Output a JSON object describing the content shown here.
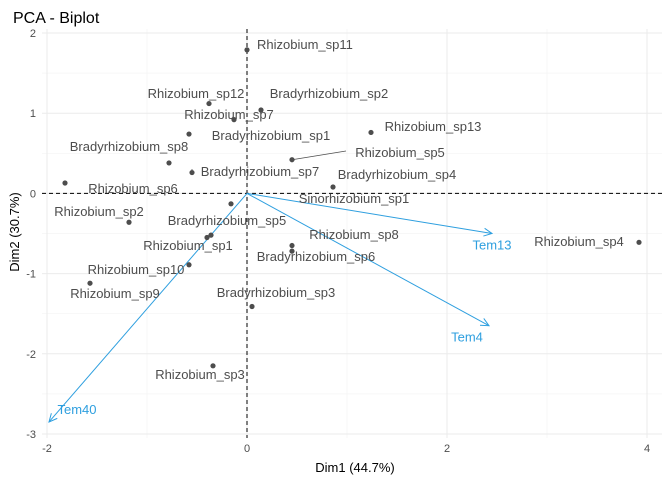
{
  "chart_data": {
    "type": "scatter",
    "title": "PCA - Biplot",
    "xlabel": "Dim1 (44.7%)",
    "ylabel": "Dim2 (30.7%)",
    "xlim": [
      -2.05,
      4.15
    ],
    "ylim": [
      -3.05,
      2.05
    ],
    "xticks": [
      -2,
      0,
      2,
      4
    ],
    "yticks": [
      -3,
      -2,
      -1,
      0,
      1,
      2
    ],
    "grid": true,
    "reference_lines": {
      "x": 0,
      "y": 0
    },
    "point_color": "#4d4d4d",
    "variable_color": "#2e9fdf",
    "individuals": [
      {
        "label": "Rhizobium_sp11",
        "x": 0.0,
        "y": 1.79
      },
      {
        "label": "Rhizobium_sp12",
        "x": -0.38,
        "y": 1.12
      },
      {
        "label": "Bradyrhizobium_sp2",
        "x": 0.14,
        "y": 1.04
      },
      {
        "label": "Rhizobium_sp7",
        "x": -0.13,
        "y": 0.92
      },
      {
        "label": "Bradyrhizobium_sp1",
        "x": -0.58,
        "y": 0.74
      },
      {
        "label": "Rhizobium_sp13",
        "x": 1.24,
        "y": 0.76
      },
      {
        "label": "Bradyrhizobium_sp8",
        "x": -0.78,
        "y": 0.38
      },
      {
        "label": "Rhizobium_sp5",
        "x": 0.45,
        "y": 0.42
      },
      {
        "label": "Bradyrhizobium_sp7",
        "x": -0.55,
        "y": 0.26
      },
      {
        "label": "Bradyrhizobium_sp4",
        "x": 0.86,
        "y": 0.08
      },
      {
        "label": "Rhizobium_sp6",
        "x": -1.82,
        "y": 0.13
      },
      {
        "label": "Sinorhizobium_sp1",
        "x": -0.16,
        "y": -0.13
      },
      {
        "label": "Rhizobium_sp2",
        "x": -1.18,
        "y": -0.36
      },
      {
        "label": "Bradyrhizobium_sp5",
        "x": -0.36,
        "y": -0.52
      },
      {
        "label": "Rhizobium_sp8",
        "x": 0.45,
        "y": -0.65
      },
      {
        "label": "Rhizobium_sp1",
        "x": -0.4,
        "y": -0.55
      },
      {
        "label": "Bradyrhizobium_sp6",
        "x": 0.45,
        "y": -0.72
      },
      {
        "label": "Rhizobium_sp4",
        "x": 3.92,
        "y": -0.61
      },
      {
        "label": "Rhizobium_sp10",
        "x": -0.58,
        "y": -0.89
      },
      {
        "label": "Rhizobium_sp9",
        "x": -1.57,
        "y": -1.12
      },
      {
        "label": "Bradyrhizobium_sp3",
        "x": 0.05,
        "y": -1.41
      },
      {
        "label": "Rhizobium_sp3",
        "x": -0.34,
        "y": -2.15
      }
    ],
    "variables": [
      {
        "label": "Tem13",
        "x": 2.45,
        "y": -0.5
      },
      {
        "label": "Tem4",
        "x": 2.42,
        "y": -1.65
      },
      {
        "label": "Tem40",
        "x": -1.98,
        "y": -2.85
      }
    ]
  }
}
